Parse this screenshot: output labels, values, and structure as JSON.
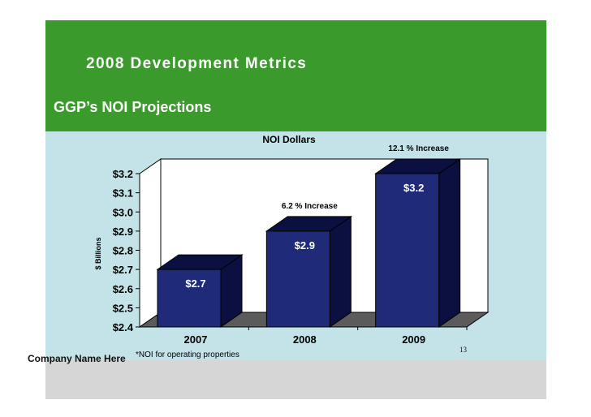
{
  "slide": {
    "title": "2008 Development Metrics",
    "subtitle": "GGP’s NOI Projections",
    "company": "Company Name Here",
    "page_number": "13"
  },
  "colors": {
    "header": "#3b9a2c",
    "panel": "#c4e3e8",
    "bar": "#1f2a78",
    "bar_side": "#0b1040",
    "floor": "#5b5b5b"
  },
  "chart_data": {
    "type": "bar",
    "title": "NOI Dollars",
    "ylabel": "$ Billions",
    "xlabel": "",
    "ylim": [
      2.4,
      3.2
    ],
    "yticks": [
      2.4,
      2.5,
      2.6,
      2.7,
      2.8,
      2.9,
      3.0,
      3.1,
      3.2
    ],
    "ytick_labels": [
      "$2.4",
      "$2.5",
      "$2.6",
      "$2.7",
      "$2.8",
      "$2.9",
      "$3.0",
      "$3.1",
      "$3.2"
    ],
    "categories": [
      "2007",
      "2008",
      "2009"
    ],
    "values": [
      2.7,
      2.9,
      3.2
    ],
    "data_labels": [
      "$2.7",
      "$2.9",
      "$3.2"
    ],
    "annotations": [
      "",
      "6.2 % Increase",
      "12.1 % Increase"
    ],
    "footnote": "*NOI for operating properties"
  }
}
